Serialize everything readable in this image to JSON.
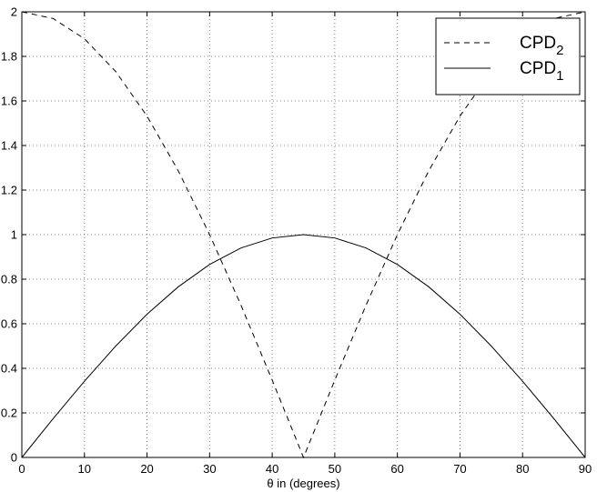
{
  "chart_data": {
    "type": "line",
    "title": "",
    "xlabel": "θ in (degrees)",
    "ylabel": "",
    "xlim": [
      0,
      90
    ],
    "ylim": [
      0,
      2
    ],
    "xticks": [
      0,
      10,
      20,
      30,
      40,
      50,
      60,
      70,
      80,
      90
    ],
    "yticks": [
      0,
      0.2,
      0.4,
      0.6,
      0.8,
      1,
      1.2,
      1.4,
      1.6,
      1.8,
      2
    ],
    "xtick_labels": [
      "0",
      "10",
      "20",
      "30",
      "40",
      "50",
      "60",
      "70",
      "80",
      "90"
    ],
    "ytick_labels": [
      "0",
      "0.2",
      "0.4",
      "0.6",
      "0.8",
      "1",
      "1.2",
      "1.4",
      "1.6",
      "1.8",
      "2"
    ],
    "grid": true,
    "legend_position": "top-right",
    "x": [
      0,
      5,
      10,
      15,
      20,
      25,
      30,
      35,
      40,
      45,
      50,
      55,
      60,
      65,
      70,
      75,
      80,
      85,
      90
    ],
    "series": [
      {
        "name": "CPD",
        "subscript": "2",
        "line_style": "dashed",
        "color": "#000000",
        "values": [
          2.0,
          1.97,
          1.879,
          1.732,
          1.532,
          1.286,
          1.0,
          0.684,
          0.347,
          0.0,
          0.347,
          0.684,
          1.0,
          1.286,
          1.532,
          1.732,
          1.879,
          1.97,
          2.0
        ]
      },
      {
        "name": "CPD",
        "subscript": "1",
        "line_style": "solid",
        "color": "#000000",
        "values": [
          0.0,
          0.174,
          0.342,
          0.5,
          0.643,
          0.766,
          0.866,
          0.94,
          0.985,
          1.0,
          0.985,
          0.94,
          0.866,
          0.766,
          0.643,
          0.5,
          0.342,
          0.174,
          0.0
        ]
      }
    ]
  }
}
